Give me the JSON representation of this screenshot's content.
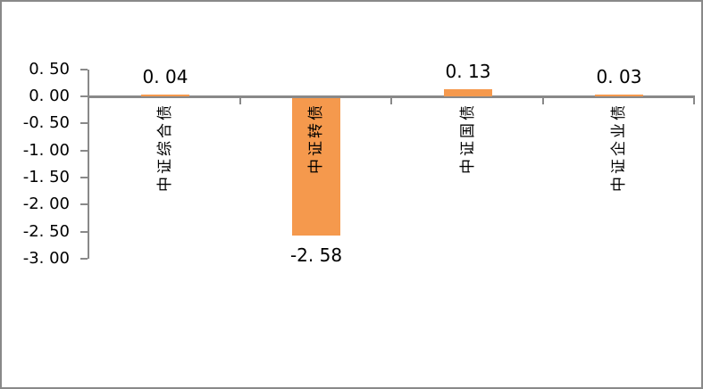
{
  "chart_data": {
    "type": "bar",
    "title": "",
    "xlabel": "",
    "ylabel": "",
    "categories": [
      "中证综合债",
      "中证转债",
      "中证国债",
      "中证企业债"
    ],
    "values": [
      0.04,
      -2.58,
      0.13,
      0.03
    ],
    "value_labels": [
      "0. 04",
      "-2. 58",
      "0. 13",
      "0. 03"
    ],
    "ylim": [
      -3.0,
      0.5
    ],
    "y_ticks": [
      0.5,
      0.0,
      -0.5,
      -1.0,
      -1.5,
      -2.0,
      -2.5,
      -3.0
    ],
    "y_tick_labels": [
      "0. 50",
      "0. 00",
      "-0. 50",
      "-1. 00",
      "-1. 50",
      "-2. 00",
      "-2. 50",
      "-3. 00"
    ],
    "grid": false,
    "legend": null,
    "bar_color": "#F5994D",
    "axis_color": "#898989",
    "text_color": "#000000",
    "background_color": "#FFFFFF",
    "border_color": "#898989"
  }
}
